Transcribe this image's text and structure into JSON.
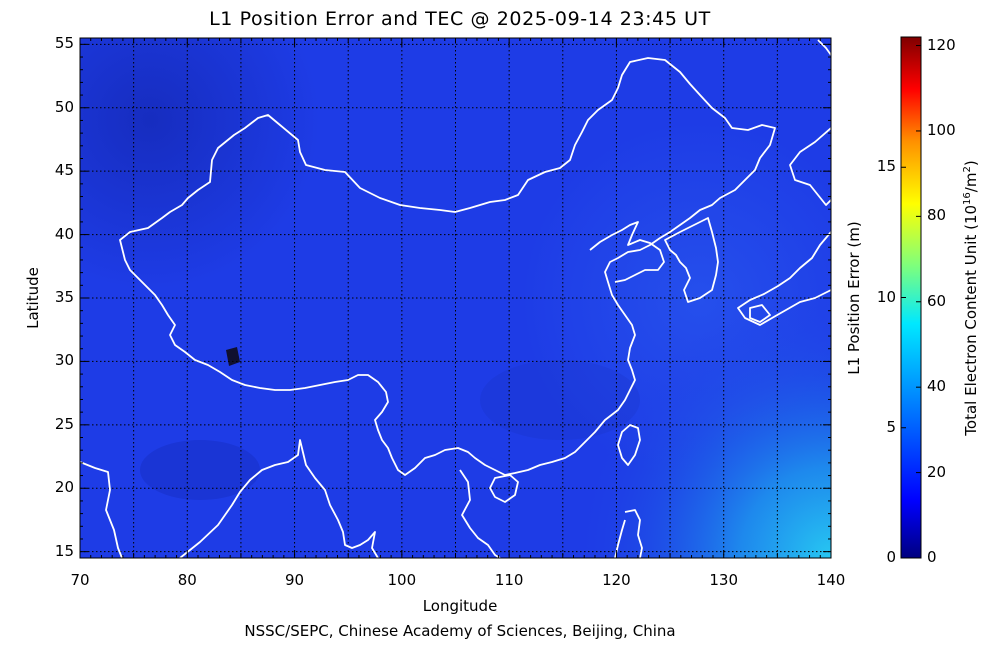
{
  "title": "L1 Position Error and TEC @ 2025-09-14 23:45 UT",
  "credit": "NSSC/SEPC, Chinese Academy of Sciences, Beijing, China",
  "map": {
    "xlabel": "Longitude",
    "ylabel": "Latitude",
    "lon_range": [
      70,
      140
    ],
    "lat_range": [
      14.5,
      55.5
    ],
    "lon_ticks": [
      "70",
      "80",
      "90",
      "100",
      "110",
      "120",
      "130",
      "140"
    ],
    "lat_ticks": [
      "15",
      "20",
      "25",
      "30",
      "35",
      "40",
      "45",
      "50",
      "55"
    ],
    "grid": "dotted every 5 degrees",
    "coastline_color": "#ffffff"
  },
  "colorbar": {
    "error_label": "L1 Position Error (m)",
    "error_ticks": [
      "0",
      "5",
      "10",
      "15"
    ],
    "tec_label_main": "Total Electron Content Unit (10",
    "tec_label_sup1": "16",
    "tec_label_mid": "/m",
    "tec_label_sup2": "2",
    "tec_label_end": ")",
    "tec_ticks": [
      "0",
      "20",
      "40",
      "60",
      "80",
      "100",
      "120"
    ],
    "colormap": [
      "#00007f",
      "#0000ff",
      "#0080ff",
      "#00ffff",
      "#80ff80",
      "#ffff00",
      "#ff8000",
      "#ff0000",
      "#800000"
    ]
  },
  "tec_field": {
    "description_values": "dominant TEC ~12-20 TECU over China, rising to ~30-35 TECU toward south-east corner",
    "background_tecu": 16,
    "southeast_max_tecu": 34
  },
  "colors": {
    "background": "#ffffff",
    "map_dominant": "#1e3ce6",
    "map_dark": "#1428b4",
    "map_light": "#2aa0f0"
  }
}
